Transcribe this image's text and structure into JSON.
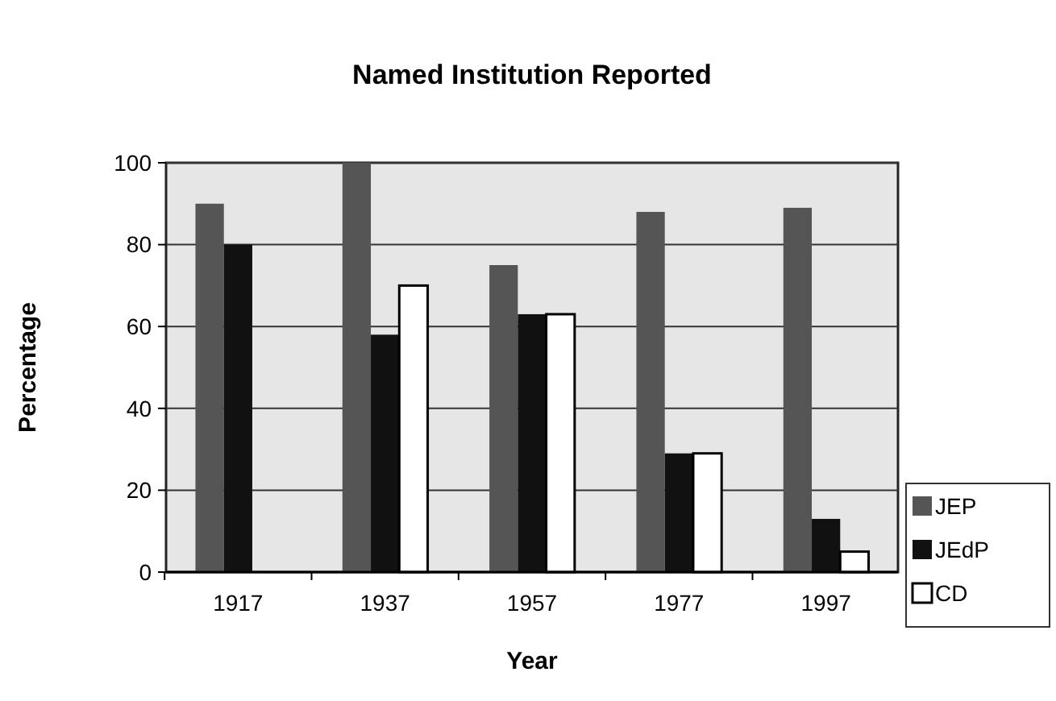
{
  "chart_data": {
    "type": "bar",
    "title": "Named Institution Reported",
    "xlabel": "Year",
    "ylabel": "Percentage",
    "categories": [
      "1917",
      "1937",
      "1957",
      "1977",
      "1997"
    ],
    "series": [
      {
        "name": "JEP",
        "color": "#555555",
        "values": [
          90,
          100,
          75,
          88,
          89
        ]
      },
      {
        "name": "JEdP",
        "color": "#111111",
        "values": [
          80,
          58,
          63,
          29,
          13
        ]
      },
      {
        "name": "CD",
        "color": "#ffffff",
        "values": [
          0,
          70,
          63,
          29,
          5
        ]
      }
    ],
    "ylim": [
      0,
      100
    ],
    "yticks": [
      0,
      20,
      40,
      60,
      80,
      100
    ],
    "grid": "y",
    "legend": "bottom right"
  }
}
